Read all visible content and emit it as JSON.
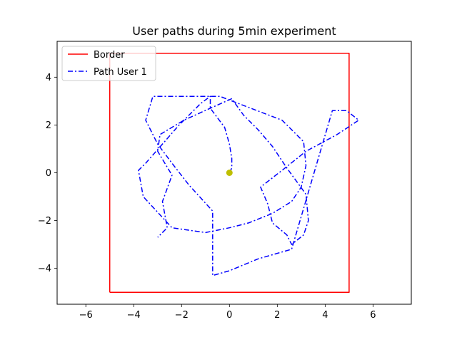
{
  "chart_data": {
    "type": "line",
    "title": "User paths during 5min experiment",
    "xlabel": "",
    "ylabel": "",
    "xlim": [
      -7.2,
      7.6
    ],
    "ylim": [
      -5.5,
      5.5
    ],
    "xticks": [
      -6,
      -4,
      -2,
      0,
      2,
      4,
      6
    ],
    "yticks": [
      -4,
      -2,
      0,
      2,
      4
    ],
    "xtick_labels": [
      "−6",
      "−4",
      "−2",
      "0",
      "2",
      "4",
      "6"
    ],
    "ytick_labels": [
      "−4",
      "−2",
      "0",
      "2",
      "4"
    ],
    "grid": false,
    "legend_position": "top-left",
    "series": [
      {
        "name": "Border",
        "color": "#ff0000",
        "style": "solid",
        "x": [
          -5,
          5,
          5,
          -5,
          -5
        ],
        "y": [
          -5,
          -5,
          5,
          5,
          -5
        ]
      },
      {
        "name": "Path User 1",
        "color": "#0000ff",
        "style": "dashdot",
        "x": [
          0,
          0.1,
          0.1,
          0.0,
          -0.2,
          -0.8,
          -0.8,
          -1.2,
          -2.1,
          -3.5,
          -3.8,
          -3.6,
          -2.4,
          -1.0,
          0.0,
          0.8,
          1.8,
          2.6,
          3.0,
          3.2,
          3.1,
          2.2,
          -0.4,
          -3.2,
          -3.5,
          -3.0,
          -2.4,
          -1.7,
          -0.7,
          -0.7,
          0.0,
          1.2,
          2.6,
          4.3,
          4.9,
          5.4,
          4.5,
          3.2,
          2.2,
          1.3,
          1.6,
          1.8,
          2.4,
          2.6,
          3.1,
          3.3,
          3.2,
          2.4,
          1.8,
          1.2,
          0.6,
          0.1,
          -0.8,
          -1.9,
          -2.9,
          -3.0,
          -2.4,
          -2.8,
          -2.6,
          -3.0
        ],
        "y": [
          0.0,
          0.2,
          0.6,
          1.2,
          1.9,
          2.7,
          3.2,
          2.9,
          2.0,
          0.4,
          0.1,
          -1.0,
          -2.3,
          -2.5,
          -2.3,
          -2.1,
          -1.7,
          -1.2,
          -0.6,
          0.3,
          1.3,
          2.2,
          3.2,
          3.2,
          2.2,
          1.2,
          0.4,
          -0.5,
          -1.6,
          -4.3,
          -4.1,
          -3.6,
          -3.2,
          2.6,
          2.6,
          2.2,
          1.6,
          0.9,
          0.1,
          -0.6,
          -1.3,
          -2.1,
          -2.6,
          -3.0,
          -2.6,
          -2.0,
          -0.9,
          0.2,
          1.1,
          1.8,
          2.4,
          3.1,
          2.7,
          2.2,
          1.6,
          0.9,
          -0.1,
          -1.2,
          -2.3,
          -2.7
        ]
      }
    ],
    "origin_marker": {
      "x": 0,
      "y": 0,
      "color": "#bfbf00"
    }
  }
}
